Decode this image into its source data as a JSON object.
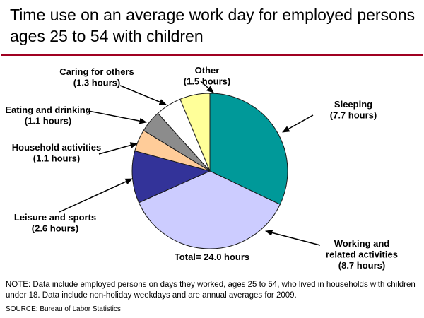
{
  "title": "Time use on an average work day for employed persons ages 25 to 54 with children",
  "accent_rule_color": "#A00021",
  "note": "NOTE: Data include employed persons on days they worked, ages 25 to 54, who lived in households with children under 18. Data include non-holiday weekdays and are annual averages for 2009.",
  "source": "SOURCE: Bureau of Labor Statistics",
  "chart_data": {
    "type": "pie",
    "title": "Time use on an average work day for employed persons ages 25 to 54 with children",
    "unit": "hours",
    "total": 24.0,
    "total_label": "Total= 24.0 hours",
    "start_angle_deg": 0,
    "direction": "clockwise",
    "outline_color": "#1a1a1a",
    "slices": [
      {
        "name": "Sleeping",
        "value": 7.7,
        "color": "#009999",
        "label_lines": [
          "Sleeping",
          "(7.7 hours)"
        ]
      },
      {
        "name": "Working and related activities",
        "value": 8.7,
        "color": "#CCCCFF",
        "label_lines": [
          "Working and",
          "related activities",
          "(8.7 hours)"
        ]
      },
      {
        "name": "Leisure and sports",
        "value": 2.6,
        "color": "#333399",
        "label_lines": [
          "Leisure and sports",
          "(2.6 hours)"
        ]
      },
      {
        "name": "Household activities",
        "value": 1.1,
        "color": "#FFCC99",
        "label_lines": [
          "Household activities",
          "(1.1 hours)"
        ]
      },
      {
        "name": "Eating and drinking",
        "value": 1.1,
        "color": "#8C8C8C",
        "label_lines": [
          "Eating and drinking",
          "(1.1 hours)"
        ]
      },
      {
        "name": "Caring for others",
        "value": 1.3,
        "color": "#FFFFFF",
        "label_lines": [
          "Caring for others",
          "(1.3 hours)"
        ]
      },
      {
        "name": "Other",
        "value": 1.5,
        "color": "#FFFF99",
        "label_lines": [
          "Other",
          "(1.5 hours)"
        ]
      }
    ]
  }
}
